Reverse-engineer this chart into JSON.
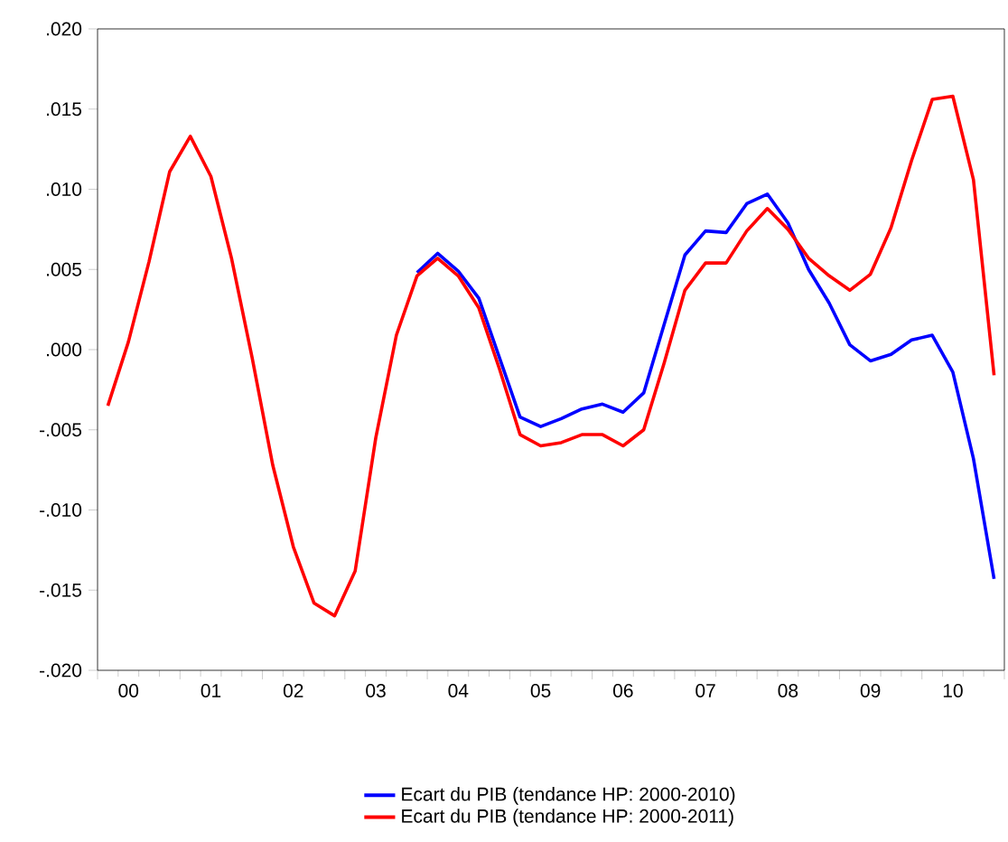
{
  "chart_data": {
    "type": "line",
    "categories": [
      null,
      "00",
      null,
      null,
      null,
      "01",
      null,
      null,
      null,
      "02",
      null,
      null,
      null,
      "03",
      null,
      null,
      null,
      "04",
      null,
      null,
      null,
      "05",
      null,
      null,
      null,
      "06",
      null,
      null,
      null,
      "07",
      null,
      null,
      null,
      "08",
      null,
      null,
      null,
      "09",
      null,
      null,
      null,
      "10",
      null,
      null
    ],
    "series": [
      {
        "name": "Ecart du PIB (tendance HP: 2000-2010)",
        "color": "#0000ff",
        "values": [
          null,
          null,
          null,
          null,
          null,
          null,
          null,
          null,
          null,
          null,
          null,
          null,
          null,
          null,
          null,
          0.0048,
          0.006,
          0.0049,
          0.0032,
          -0.0005,
          -0.0042,
          -0.0048,
          -0.0043,
          -0.0037,
          -0.0034,
          -0.0039,
          -0.0027,
          0.0016,
          0.0059,
          0.0074,
          0.0073,
          0.0091,
          0.0097,
          0.0079,
          0.005,
          0.0029,
          0.0003,
          -0.0007,
          -0.0003,
          0.0006,
          0.0009,
          -0.0014,
          -0.0068,
          -0.0143
        ]
      },
      {
        "name": "Ecart du PIB (tendance HP: 2000-2011)",
        "color": "#ff0000",
        "values": [
          -0.0035,
          0.0005,
          0.0055,
          0.0111,
          0.0133,
          0.0108,
          0.0057,
          -0.0005,
          -0.0072,
          -0.0123,
          -0.0158,
          -0.0166,
          -0.0138,
          -0.0055,
          0.0009,
          0.0046,
          0.0057,
          0.0046,
          0.0026,
          -0.0012,
          -0.0053,
          -0.006,
          -0.0058,
          -0.0053,
          -0.0053,
          -0.006,
          -0.005,
          -0.0008,
          0.0037,
          0.0054,
          0.0054,
          0.0074,
          0.0088,
          0.0075,
          0.0057,
          0.0046,
          0.0037,
          0.0047,
          0.0076,
          0.0118,
          0.0156,
          0.0158,
          0.0106,
          -0.0016
        ]
      }
    ],
    "ylim": [
      -0.02,
      0.02
    ],
    "yticks": [
      {
        "value": -0.02,
        "label": "-.020"
      },
      {
        "value": -0.015,
        "label": "-.015"
      },
      {
        "value": -0.01,
        "label": "-.010"
      },
      {
        "value": -0.005,
        "label": "-.005"
      },
      {
        "value": 0,
        "label": ".000"
      },
      {
        "value": 0.005,
        "label": ".005"
      },
      {
        "value": 0.01,
        "label": ".010"
      },
      {
        "value": 0.015,
        "label": ".015"
      },
      {
        "value": 0.02,
        "label": ".020"
      }
    ],
    "grid": false,
    "legend": "bottom",
    "line_style": "solid",
    "marker": "none"
  }
}
